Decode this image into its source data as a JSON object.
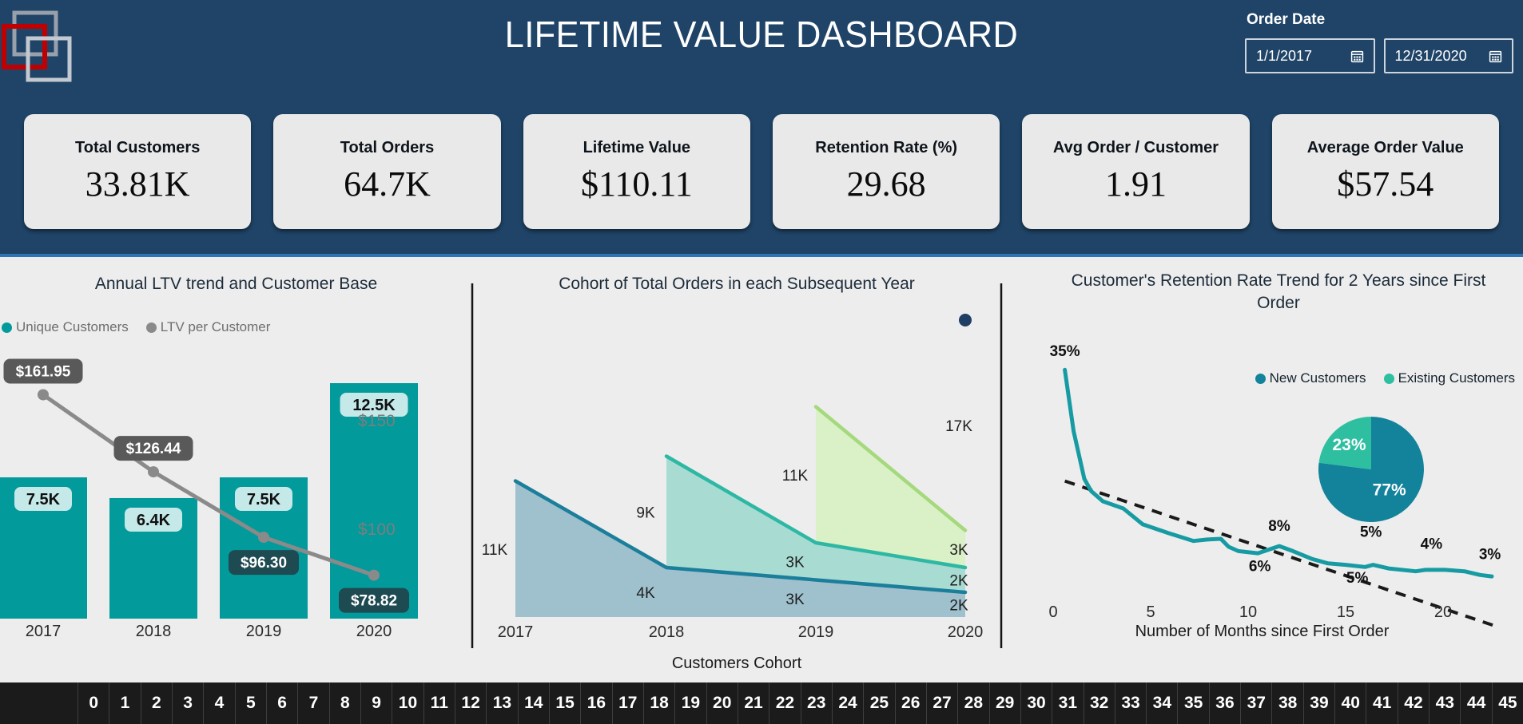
{
  "app": {
    "title": "LIFETIME VALUE DASHBOARD"
  },
  "filters": {
    "order_date_label": "Order Date",
    "start_date": "1/1/2017",
    "end_date": "12/31/2020"
  },
  "kpis": [
    {
      "label": "Total Customers",
      "value": "33.81K"
    },
    {
      "label": "Total Orders",
      "value": "64.7K"
    },
    {
      "label": "Lifetime Value",
      "value": "$110.11"
    },
    {
      "label": "Retention Rate (%)",
      "value": "29.68"
    },
    {
      "label": "Avg Order / Customer",
      "value": "1.91"
    },
    {
      "label": "Average Order Value",
      "value": "$57.54"
    }
  ],
  "chart_data": [
    {
      "id": "ltv_trend",
      "type": "bar",
      "title": "Annual LTV trend and Customer Base",
      "legend": [
        "Unique Customers",
        "LTV per Customer"
      ],
      "legend_position": "top-left",
      "categories": [
        "2017",
        "2018",
        "2019",
        "2020"
      ],
      "bars": {
        "name": "Unique Customers",
        "values_k": [
          7.5,
          6.4,
          7.5,
          12.5
        ],
        "labels": [
          "7.5K",
          "6.4K",
          "7.5K",
          "12.5K"
        ]
      },
      "line": {
        "name": "LTV per Customer",
        "values": [
          161.95,
          126.44,
          96.3,
          78.82
        ],
        "labels": [
          "$161.95",
          "$126.44",
          "$96.30",
          "$78.82"
        ]
      },
      "right_axis": {
        "ticks": [
          "$150",
          "$100"
        ],
        "tick_values": [
          150,
          100
        ]
      }
    },
    {
      "id": "cohort",
      "type": "area",
      "title": "Cohort of Total Orders in each Subsequent Year",
      "xlabel": "Customers Cohort",
      "categories": [
        "2017",
        "2018",
        "2019",
        "2020"
      ],
      "stacked": true,
      "series": [
        {
          "name": "2017",
          "start_index": 0,
          "values_k": [
            11,
            4,
            3,
            2
          ],
          "labels": [
            "11K",
            "4K",
            "3K",
            "2K"
          ]
        },
        {
          "name": "2018",
          "start_index": 1,
          "values_k": [
            9,
            3,
            2
          ],
          "labels": [
            "9K",
            "3K",
            "2K"
          ]
        },
        {
          "name": "2019",
          "start_index": 2,
          "values_k": [
            11,
            3
          ],
          "labels": [
            "11K",
            "3K"
          ]
        },
        {
          "name": "2020",
          "start_index": 3,
          "values_k": [
            17
          ],
          "labels": [
            "17K"
          ],
          "point_only": true
        }
      ]
    },
    {
      "id": "retention",
      "type": "line",
      "title": "Customer's Retention Rate Trend for 2 Years since First Order",
      "xlabel": "Number of Months since First Order",
      "x_ticks": [
        "0",
        "5",
        "10",
        "15",
        "20"
      ],
      "x_tick_values": [
        0,
        5,
        10,
        15,
        20
      ],
      "legend": [
        "New Customers",
        "Existing Customers"
      ],
      "point_labels": [
        {
          "text": "35%",
          "m": 0.6,
          "v": 36.9
        },
        {
          "text": "8%",
          "m": 11.6,
          "v": 12.7
        },
        {
          "text": "6%",
          "m": 10.6,
          "v": 7.1
        },
        {
          "text": "5%",
          "m": 16.3,
          "v": 11.9
        },
        {
          "text": "5%",
          "m": 15.6,
          "v": 5.5
        },
        {
          "text": "4%",
          "m": 19.4,
          "v": 10.2
        },
        {
          "text": "3%",
          "m": 22.4,
          "v": 8.8
        }
      ],
      "line_points": [
        [
          0.6,
          35
        ],
        [
          1.05,
          26.5
        ],
        [
          1.6,
          19.9
        ],
        [
          1.95,
          18.2
        ],
        [
          2.55,
          16.8
        ],
        [
          3.6,
          15.8
        ],
        [
          4.6,
          13.6
        ],
        [
          5.9,
          12.4
        ],
        [
          7.2,
          11.3
        ],
        [
          7.9,
          11.5
        ],
        [
          8.6,
          11.6
        ],
        [
          9.0,
          10.5
        ],
        [
          9.5,
          9.9
        ],
        [
          10.5,
          9.6
        ],
        [
          11.6,
          10.6
        ],
        [
          12.3,
          9.9
        ],
        [
          13.3,
          8.8
        ],
        [
          14.1,
          8.2
        ],
        [
          15,
          8.0
        ],
        [
          16,
          7.7
        ],
        [
          16.4,
          8.0
        ],
        [
          17.2,
          7.5
        ],
        [
          18.6,
          7.1
        ],
        [
          19.1,
          7.3
        ],
        [
          20.1,
          7.3
        ],
        [
          21.1,
          7.1
        ],
        [
          21.9,
          6.6
        ],
        [
          22.5,
          6.4
        ]
      ],
      "trend": {
        "start": [
          0.6,
          19.6
        ],
        "end": [
          22.6,
          -0.4
        ]
      },
      "pie": {
        "names": [
          "New Customers",
          "Existing Customers"
        ],
        "values": [
          77,
          23
        ],
        "labels": [
          "77%",
          "23%"
        ]
      }
    }
  ],
  "bottom_axis": {
    "cells": [
      "0",
      "1",
      "2",
      "3",
      "4",
      "5",
      "6",
      "7",
      "8",
      "9",
      "10",
      "11",
      "12",
      "13",
      "14",
      "15",
      "16",
      "17",
      "18",
      "19",
      "20",
      "21",
      "22",
      "23",
      "24",
      "25",
      "26",
      "27",
      "28",
      "29",
      "30",
      "31",
      "32",
      "33",
      "34",
      "35",
      "36",
      "37",
      "38",
      "39",
      "40",
      "41",
      "42",
      "43",
      "44",
      "45"
    ]
  },
  "colors": {
    "navy": "#1f4467",
    "accent": "#2e75b6",
    "panel_bg": "#ededed",
    "card_bg": "#e9e9e9",
    "title_text": "#1c2b3a",
    "muted_text": "#6e6e6e",
    "teal": "#029a9b",
    "teal_chip": "#c5e8e9",
    "gray_line": "#8a8a8a",
    "chip_gray": "#595959",
    "chip_dark": "#1e4a52",
    "cohort_line_a": "#1b7e9b",
    "cohort_fill_a": "#9fc0cd",
    "cohort_line_b": "#2eb8a4",
    "cohort_fill_b": "#a8dcd3",
    "cohort_line_c": "#a5d97d",
    "cohort_fill_c": "#daf0c6",
    "dot_navy": "#1f3e63",
    "retention_line": "#179ba3",
    "trend": "#1a1a1a",
    "pie_dark": "#13829b",
    "pie_light": "#2dbfa0",
    "bottom_bar": "#1b1b1b",
    "bottom_sep": "#3e3e3e",
    "divider": "#141414",
    "logo_red": "#c00000",
    "logo_gray": "#98a1ab",
    "logo_gray_light": "#c2c9d1"
  }
}
